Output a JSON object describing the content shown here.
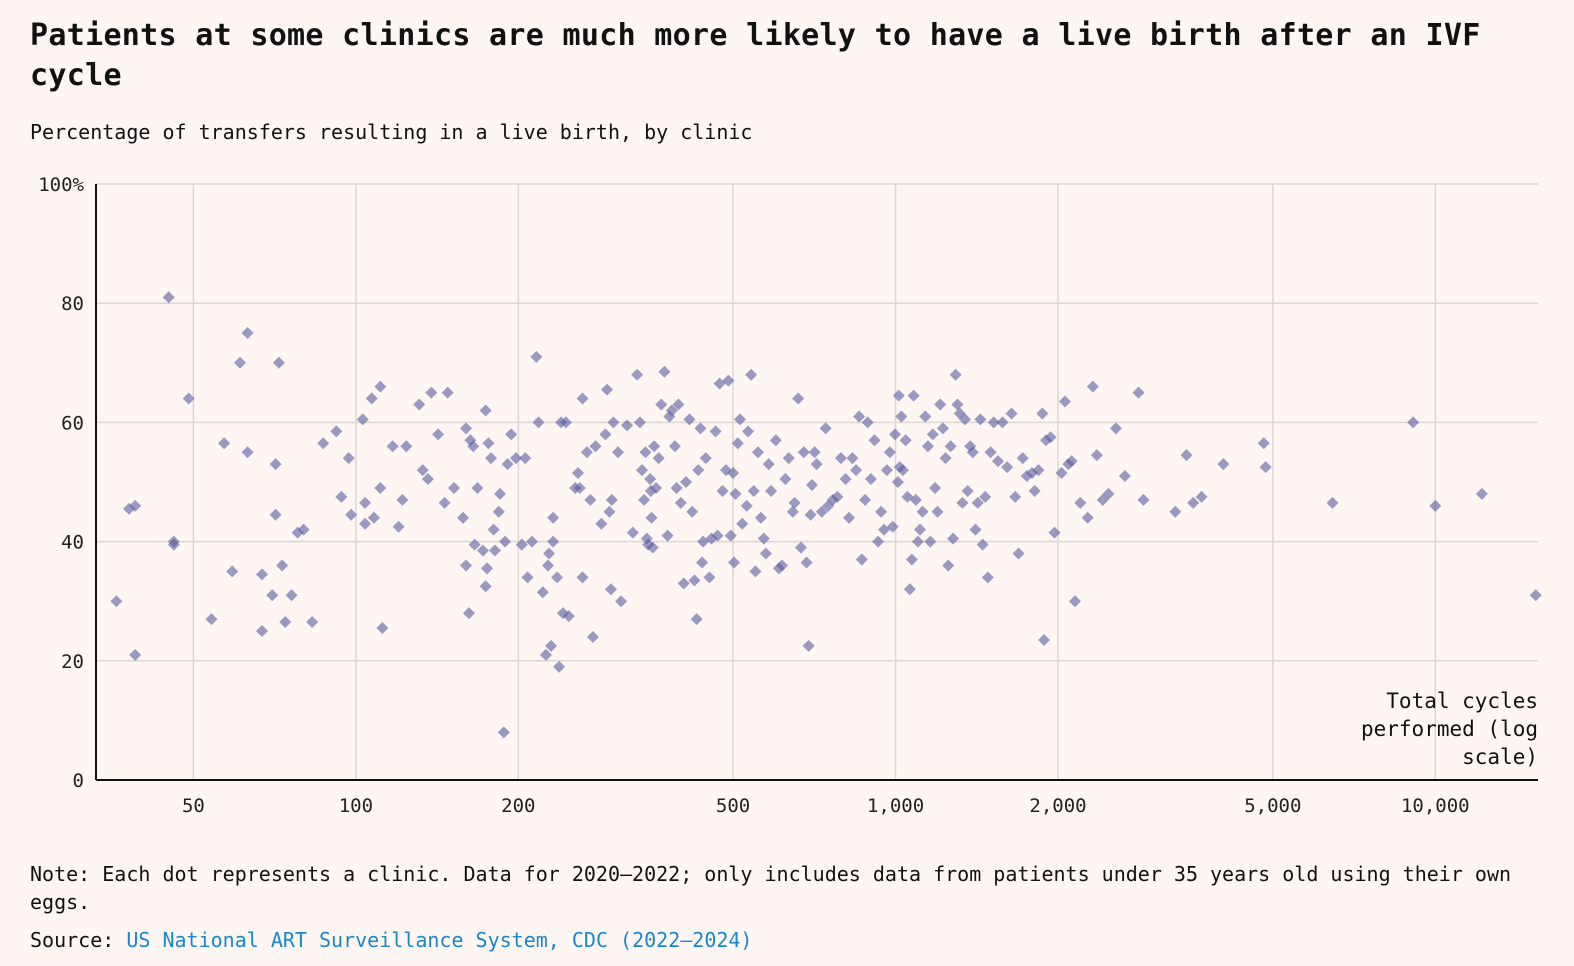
{
  "chart_data": {
    "type": "scatter",
    "title": "Patients at some clinics are much more likely to have a live birth after an IVF cycle",
    "subtitle": "Percentage of transfers resulting in a live birth, by clinic",
    "xlabel": "Total cycles performed (log scale)",
    "xlabel_lines": [
      "Total cycles",
      "performed (log",
      "scale)"
    ],
    "ylabel": "",
    "x_scale": "log",
    "xlim": [
      33,
      15500
    ],
    "ylim": [
      0,
      100
    ],
    "x_ticks": [
      50,
      100,
      200,
      500,
      1000,
      2000,
      5000,
      10000
    ],
    "x_tick_labels": [
      "50",
      "100",
      "200",
      "500",
      "1,000",
      "2,000",
      "5,000",
      "10,000"
    ],
    "y_ticks": [
      0,
      20,
      40,
      60,
      80,
      100
    ],
    "y_tick_labels": [
      "0",
      "20",
      "40",
      "60",
      "80",
      "100%"
    ],
    "grid": true,
    "marker": "diamond",
    "marker_color": "#5a5aa0",
    "points": [
      [
        36,
        30
      ],
      [
        38,
        45.5
      ],
      [
        39,
        21
      ],
      [
        39,
        46
      ],
      [
        45,
        81
      ],
      [
        46,
        39.5
      ],
      [
        46,
        40
      ],
      [
        49,
        64
      ],
      [
        54,
        27
      ],
      [
        57,
        56.5
      ],
      [
        59,
        35
      ],
      [
        61,
        70
      ],
      [
        63,
        75
      ],
      [
        63,
        55
      ],
      [
        67,
        34.5
      ],
      [
        67,
        25
      ],
      [
        70,
        31
      ],
      [
        72,
        70
      ],
      [
        71,
        53
      ],
      [
        71,
        44.5
      ],
      [
        73,
        36
      ],
      [
        74,
        26.5
      ],
      [
        76,
        31
      ],
      [
        78,
        41.5
      ],
      [
        80,
        42
      ],
      [
        83,
        26.5
      ],
      [
        87,
        56.5
      ],
      [
        92,
        58.5
      ],
      [
        94,
        47.5
      ],
      [
        97,
        54
      ],
      [
        98,
        44.5
      ],
      [
        103,
        60.5
      ],
      [
        104,
        43
      ],
      [
        104,
        46.5
      ],
      [
        107,
        64
      ],
      [
        108,
        44
      ],
      [
        111,
        66
      ],
      [
        111,
        49
      ],
      [
        112,
        25.5
      ],
      [
        117,
        56
      ],
      [
        120,
        42.5
      ],
      [
        122,
        47
      ],
      [
        124,
        56
      ],
      [
        131,
        63
      ],
      [
        133,
        52
      ],
      [
        136,
        50.5
      ],
      [
        138,
        65
      ],
      [
        142,
        58
      ],
      [
        146,
        46.5
      ],
      [
        148,
        65
      ],
      [
        152,
        49
      ],
      [
        158,
        44
      ],
      [
        160,
        36
      ],
      [
        160,
        59
      ],
      [
        162,
        28
      ],
      [
        163,
        57
      ],
      [
        165,
        56
      ],
      [
        166,
        39.5
      ],
      [
        168,
        49
      ],
      [
        172,
        38.5
      ],
      [
        174,
        62
      ],
      [
        174,
        32.5
      ],
      [
        175,
        35.5
      ],
      [
        176,
        56.5
      ],
      [
        178,
        54
      ],
      [
        180,
        42
      ],
      [
        181,
        38.5
      ],
      [
        184,
        45
      ],
      [
        185,
        48
      ],
      [
        188,
        8
      ],
      [
        189,
        40
      ],
      [
        191,
        53
      ],
      [
        194,
        58
      ],
      [
        198,
        54
      ],
      [
        203,
        39.5
      ],
      [
        206,
        54
      ],
      [
        208,
        34
      ],
      [
        212,
        40
      ],
      [
        216,
        71
      ],
      [
        218,
        60
      ],
      [
        222,
        31.5
      ],
      [
        225,
        21
      ],
      [
        227,
        36
      ],
      [
        228,
        38
      ],
      [
        230,
        22.5
      ],
      [
        232,
        44
      ],
      [
        232,
        40
      ],
      [
        236,
        34
      ],
      [
        238,
        19
      ],
      [
        240,
        60
      ],
      [
        242,
        28
      ],
      [
        245,
        60
      ],
      [
        248,
        27.5
      ],
      [
        255,
        49
      ],
      [
        258,
        51.5
      ],
      [
        260,
        49
      ],
      [
        263,
        34
      ],
      [
        263,
        64
      ],
      [
        268,
        55
      ],
      [
        272,
        47
      ],
      [
        275,
        24
      ],
      [
        278,
        56
      ],
      [
        285,
        43
      ],
      [
        290,
        58
      ],
      [
        292,
        65.5
      ],
      [
        295,
        45
      ],
      [
        297,
        32
      ],
      [
        298,
        47
      ],
      [
        300,
        60
      ],
      [
        306,
        55
      ],
      [
        310,
        30
      ],
      [
        318,
        59.5
      ],
      [
        326,
        41.5
      ],
      [
        332,
        68
      ],
      [
        336,
        60
      ],
      [
        339,
        52
      ],
      [
        342,
        47
      ],
      [
        344,
        55
      ],
      [
        346,
        40.5
      ],
      [
        348,
        39.5
      ],
      [
        351,
        50.5
      ],
      [
        352,
        48.5
      ],
      [
        353,
        44
      ],
      [
        355,
        39
      ],
      [
        357,
        56
      ],
      [
        360,
        49
      ],
      [
        364,
        54
      ],
      [
        368,
        63
      ],
      [
        373,
        68.5
      ],
      [
        378,
        41
      ],
      [
        381,
        61
      ],
      [
        385,
        62
      ],
      [
        390,
        56
      ],
      [
        393,
        49
      ],
      [
        396,
        63
      ],
      [
        400,
        46.5
      ],
      [
        405,
        33
      ],
      [
        409,
        50
      ],
      [
        415,
        60.5
      ],
      [
        420,
        45
      ],
      [
        424,
        33.5
      ],
      [
        428,
        27
      ],
      [
        431,
        52
      ],
      [
        435,
        59
      ],
      [
        438,
        36.5
      ],
      [
        440,
        40
      ],
      [
        445,
        54
      ],
      [
        452,
        34
      ],
      [
        456,
        40.5
      ],
      [
        464,
        58.5
      ],
      [
        468,
        41
      ],
      [
        472,
        66.5
      ],
      [
        478,
        48.5
      ],
      [
        485,
        52
      ],
      [
        490,
        67
      ],
      [
        495,
        41
      ],
      [
        500,
        51.5
      ],
      [
        502,
        36.5
      ],
      [
        505,
        48
      ],
      [
        510,
        56.5
      ],
      [
        515,
        60.5
      ],
      [
        520,
        43
      ],
      [
        530,
        46
      ],
      [
        533,
        58.5
      ],
      [
        540,
        68
      ],
      [
        546,
        48.5
      ],
      [
        550,
        35
      ],
      [
        556,
        55
      ],
      [
        563,
        44
      ],
      [
        570,
        40.5
      ],
      [
        575,
        38
      ],
      [
        582,
        53
      ],
      [
        588,
        48.5
      ],
      [
        600,
        57
      ],
      [
        608,
        35.5
      ],
      [
        616,
        36
      ],
      [
        625,
        50.5
      ],
      [
        634,
        54
      ],
      [
        645,
        45
      ],
      [
        650,
        46.5
      ],
      [
        660,
        64
      ],
      [
        668,
        39
      ],
      [
        676,
        55
      ],
      [
        684,
        36.5
      ],
      [
        690,
        22.5
      ],
      [
        696,
        44.5
      ],
      [
        700,
        49.5
      ],
      [
        708,
        55
      ],
      [
        714,
        53
      ],
      [
        730,
        45
      ],
      [
        742,
        59
      ],
      [
        750,
        46
      ],
      [
        765,
        47
      ],
      [
        780,
        47.5
      ],
      [
        792,
        54
      ],
      [
        808,
        50.5
      ],
      [
        820,
        44
      ],
      [
        832,
        54
      ],
      [
        845,
        52
      ],
      [
        856,
        61
      ],
      [
        866,
        37
      ],
      [
        878,
        47
      ],
      [
        888,
        60
      ],
      [
        900,
        50.5
      ],
      [
        914,
        57
      ],
      [
        928,
        40
      ],
      [
        940,
        45
      ],
      [
        952,
        42
      ],
      [
        964,
        52
      ],
      [
        976,
        55
      ],
      [
        988,
        42.5
      ],
      [
        998,
        58
      ],
      [
        1010,
        50
      ],
      [
        1014,
        64.5
      ],
      [
        1018,
        52.5
      ],
      [
        1025,
        61
      ],
      [
        1032,
        52
      ],
      [
        1044,
        57
      ],
      [
        1052,
        47.5
      ],
      [
        1063,
        32
      ],
      [
        1072,
        37
      ],
      [
        1080,
        64.5
      ],
      [
        1090,
        47
      ],
      [
        1100,
        40
      ],
      [
        1110,
        42
      ],
      [
        1122,
        45
      ],
      [
        1135,
        61
      ],
      [
        1148,
        56
      ],
      [
        1160,
        40
      ],
      [
        1172,
        58
      ],
      [
        1184,
        49
      ],
      [
        1196,
        45
      ],
      [
        1210,
        63
      ],
      [
        1224,
        59
      ],
      [
        1238,
        54
      ],
      [
        1252,
        36
      ],
      [
        1265,
        56
      ],
      [
        1278,
        40.5
      ],
      [
        1292,
        68
      ],
      [
        1302,
        63
      ],
      [
        1315,
        61.5
      ],
      [
        1330,
        46.5
      ],
      [
        1345,
        60.5
      ],
      [
        1360,
        48.5
      ],
      [
        1375,
        56
      ],
      [
        1390,
        55
      ],
      [
        1406,
        42
      ],
      [
        1420,
        46.5
      ],
      [
        1436,
        60.5
      ],
      [
        1450,
        39.5
      ],
      [
        1466,
        47.5
      ],
      [
        1482,
        34
      ],
      [
        1500,
        55
      ],
      [
        1520,
        60
      ],
      [
        1548,
        53.5
      ],
      [
        1578,
        60
      ],
      [
        1610,
        52.5
      ],
      [
        1640,
        61.5
      ],
      [
        1666,
        47.5
      ],
      [
        1690,
        38
      ],
      [
        1720,
        54
      ],
      [
        1750,
        51
      ],
      [
        1790,
        51.5
      ],
      [
        1810,
        48.5
      ],
      [
        1840,
        52
      ],
      [
        1870,
        61.5
      ],
      [
        1884,
        23.5
      ],
      [
        1900,
        57
      ],
      [
        1938,
        57.5
      ],
      [
        1970,
        41.5
      ],
      [
        2030,
        51.5
      ],
      [
        2060,
        63.5
      ],
      [
        2090,
        53
      ],
      [
        2120,
        53.5
      ],
      [
        2150,
        30
      ],
      [
        2200,
        46.5
      ],
      [
        2270,
        44
      ],
      [
        2320,
        66
      ],
      [
        2360,
        54.5
      ],
      [
        2420,
        47
      ],
      [
        2480,
        48
      ],
      [
        2560,
        59
      ],
      [
        2660,
        51
      ],
      [
        2820,
        65
      ],
      [
        2880,
        47
      ],
      [
        3300,
        45
      ],
      [
        3460,
        54.5
      ],
      [
        3560,
        46.5
      ],
      [
        3690,
        47.5
      ],
      [
        4050,
        53
      ],
      [
        4810,
        56.5
      ],
      [
        4850,
        52.5
      ],
      [
        6450,
        46.5
      ],
      [
        9100,
        60
      ],
      [
        10000,
        46
      ],
      [
        12200,
        48
      ],
      [
        15350,
        31
      ]
    ]
  },
  "note": "Note: Each dot represents a clinic. Data for 2020–2022; only includes data from patients under 35 years old using their own eggs.",
  "source_label": "Source:",
  "source_link": "US National ART Surveillance System, CDC (2022–2024)",
  "colors": {
    "background": "#fdf6f3",
    "grid": "#dcd6d4",
    "axis": "#111111",
    "marker": "#5a5aa0",
    "link": "#1a87c8"
  }
}
